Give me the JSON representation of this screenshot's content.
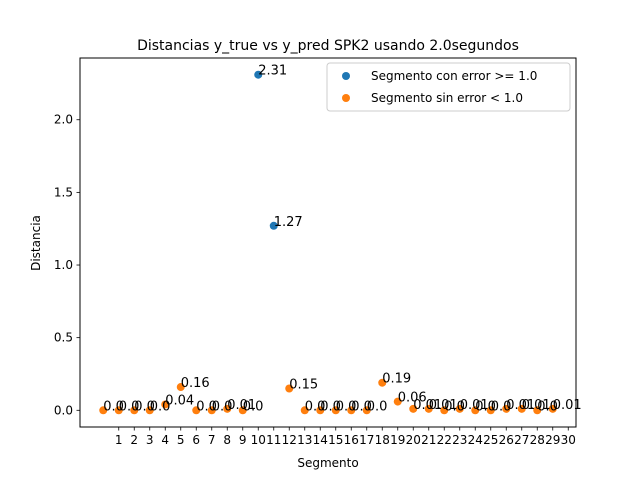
{
  "chart_data": {
    "type": "scatter",
    "title": "Distancias y_true vs y_pred SPK2  usando 2.0segundos",
    "xlabel": "Segmento",
    "ylabel": "Distancia",
    "xlim": [
      -1.5,
      30.5
    ],
    "ylim": [
      -0.115,
      2.425
    ],
    "x_ticks": [
      1,
      2,
      3,
      4,
      5,
      6,
      7,
      8,
      9,
      10,
      11,
      12,
      13,
      14,
      15,
      16,
      17,
      18,
      19,
      20,
      21,
      22,
      23,
      24,
      25,
      26,
      27,
      28,
      29,
      30
    ],
    "x_tick_labels": [
      "1",
      "2",
      "3",
      "4",
      "5",
      "6",
      "7",
      "8",
      "9",
      "10",
      "11",
      "12",
      "13",
      "14",
      "15",
      "16",
      "17",
      "18",
      "19",
      "20",
      "21",
      "22",
      "23",
      "24",
      "25",
      "26",
      "27",
      "28",
      "29",
      "30"
    ],
    "y_ticks": [
      0.0,
      0.5,
      1.0,
      1.5,
      2.0
    ],
    "y_tick_labels": [
      "0.0",
      "0.5",
      "1.0",
      "1.5",
      "2.0"
    ],
    "grid": false,
    "legend_position": "top-right",
    "series": [
      {
        "name": "Segmento con error >= 1.0",
        "color": "#1f77b4",
        "points": [
          {
            "x": 10,
            "y": 2.31,
            "label": "2.31"
          },
          {
            "x": 11,
            "y": 1.27,
            "label": "1.27"
          }
        ]
      },
      {
        "name": "Segmento sin error < 1.0",
        "color": "#ff7f0e",
        "points": [
          {
            "x": 0,
            "y": 0.0,
            "label": "0.0"
          },
          {
            "x": 1,
            "y": 0.0,
            "label": "0.0"
          },
          {
            "x": 2,
            "y": 0.0,
            "label": "0.0"
          },
          {
            "x": 3,
            "y": 0.0,
            "label": "0.0"
          },
          {
            "x": 4,
            "y": 0.04,
            "label": "0.04"
          },
          {
            "x": 5,
            "y": 0.16,
            "label": "0.16"
          },
          {
            "x": 6,
            "y": 0.0,
            "label": "0.0"
          },
          {
            "x": 7,
            "y": 0.0,
            "label": "0.0"
          },
          {
            "x": 8,
            "y": 0.01,
            "label": "0.01"
          },
          {
            "x": 9,
            "y": 0.0,
            "label": "0.0"
          },
          {
            "x": 12,
            "y": 0.15,
            "label": "0.15"
          },
          {
            "x": 13,
            "y": 0.0,
            "label": "0.0"
          },
          {
            "x": 14,
            "y": 0.0,
            "label": "0.0"
          },
          {
            "x": 15,
            "y": 0.0,
            "label": "0.0"
          },
          {
            "x": 16,
            "y": 0.0,
            "label": "0.0"
          },
          {
            "x": 17,
            "y": 0.0,
            "label": "0.0"
          },
          {
            "x": 18,
            "y": 0.19,
            "label": "0.19"
          },
          {
            "x": 19,
            "y": 0.06,
            "label": "0.06"
          },
          {
            "x": 20,
            "y": 0.01,
            "label": "0.01"
          },
          {
            "x": 21,
            "y": 0.01,
            "label": "0.01"
          },
          {
            "x": 22,
            "y": 0.0,
            "label": "0.0"
          },
          {
            "x": 23,
            "y": 0.01,
            "label": "0.01"
          },
          {
            "x": 24,
            "y": 0.0,
            "label": "0.0"
          },
          {
            "x": 25,
            "y": 0.0,
            "label": "0.0"
          },
          {
            "x": 26,
            "y": 0.01,
            "label": "0.01"
          },
          {
            "x": 27,
            "y": 0.01,
            "label": "0.01"
          },
          {
            "x": 28,
            "y": 0.0,
            "label": "0.0"
          },
          {
            "x": 29,
            "y": 0.01,
            "label": "0.01"
          }
        ]
      }
    ]
  }
}
